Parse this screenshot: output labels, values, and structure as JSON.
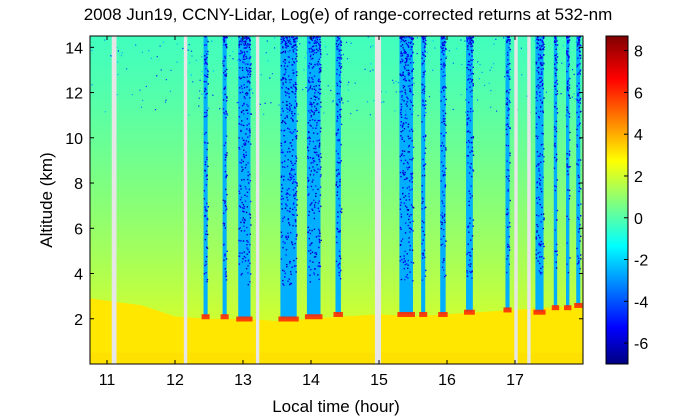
{
  "chart_data": {
    "type": "heatmap",
    "title": "2008 Jun19, CCNY-Lidar, Log(e) of range-corrected returns at 532-nm",
    "xlabel": "Local time (hour)",
    "ylabel": "Altitude (km)",
    "xlim": [
      10.75,
      18.0
    ],
    "ylim": [
      0,
      14.5
    ],
    "x_ticks": [
      11,
      12,
      13,
      14,
      15,
      16,
      17
    ],
    "y_ticks": [
      2,
      4,
      6,
      8,
      10,
      12,
      14
    ],
    "colorbar": {
      "range": [
        -7,
        8.7
      ],
      "ticks": [
        -6,
        -4,
        -2,
        0,
        2,
        4,
        6,
        8
      ],
      "colormap": "jet"
    },
    "data_gaps_hours": [
      [
        11.07,
        11.14
      ],
      [
        12.13,
        12.18
      ],
      [
        13.19,
        13.24
      ],
      [
        14.94,
        15.03
      ],
      [
        16.99,
        17.04
      ],
      [
        17.18,
        17.23
      ]
    ],
    "background_values": {
      "near_surface": 3.2,
      "boundary_layer": 2.4,
      "free_troposphere_top": -0.3,
      "cloud_base_peak": 6.0,
      "above_cloud_noise": -6.5
    },
    "boundary_layer_top_km": [
      {
        "t": 10.75,
        "h": 2.9
      },
      {
        "t": 11.5,
        "h": 2.6
      },
      {
        "t": 12.0,
        "h": 2.1
      },
      {
        "t": 12.5,
        "h": 2.0
      },
      {
        "t": 13.0,
        "h": 2.0
      },
      {
        "t": 13.5,
        "h": 1.9
      },
      {
        "t": 14.0,
        "h": 2.0
      },
      {
        "t": 14.5,
        "h": 2.1
      },
      {
        "t": 15.0,
        "h": 2.2
      },
      {
        "t": 15.5,
        "h": 2.1
      },
      {
        "t": 16.0,
        "h": 2.2
      },
      {
        "t": 16.5,
        "h": 2.3
      },
      {
        "t": 17.0,
        "h": 2.4
      },
      {
        "t": 17.5,
        "h": 2.5
      },
      {
        "t": 18.0,
        "h": 2.6
      }
    ],
    "cloud_events": [
      {
        "t": 12.42,
        "w": 0.06,
        "base_km": 2.1
      },
      {
        "t": 12.7,
        "w": 0.06,
        "base_km": 2.1
      },
      {
        "t": 12.93,
        "w": 0.18,
        "base_km": 2.0
      },
      {
        "t": 13.55,
        "w": 0.24,
        "base_km": 2.0
      },
      {
        "t": 13.94,
        "w": 0.2,
        "base_km": 2.1
      },
      {
        "t": 14.36,
        "w": 0.08,
        "base_km": 2.2
      },
      {
        "t": 15.3,
        "w": 0.2,
        "base_km": 2.2
      },
      {
        "t": 15.62,
        "w": 0.06,
        "base_km": 2.2
      },
      {
        "t": 15.9,
        "w": 0.08,
        "base_km": 2.2
      },
      {
        "t": 16.28,
        "w": 0.1,
        "base_km": 2.3
      },
      {
        "t": 16.86,
        "w": 0.06,
        "base_km": 2.4
      },
      {
        "t": 17.3,
        "w": 0.12,
        "base_km": 2.3
      },
      {
        "t": 17.57,
        "w": 0.05,
        "base_km": 2.5
      },
      {
        "t": 17.75,
        "w": 0.05,
        "base_km": 2.5
      },
      {
        "t": 17.9,
        "w": 0.06,
        "base_km": 2.6
      }
    ]
  }
}
